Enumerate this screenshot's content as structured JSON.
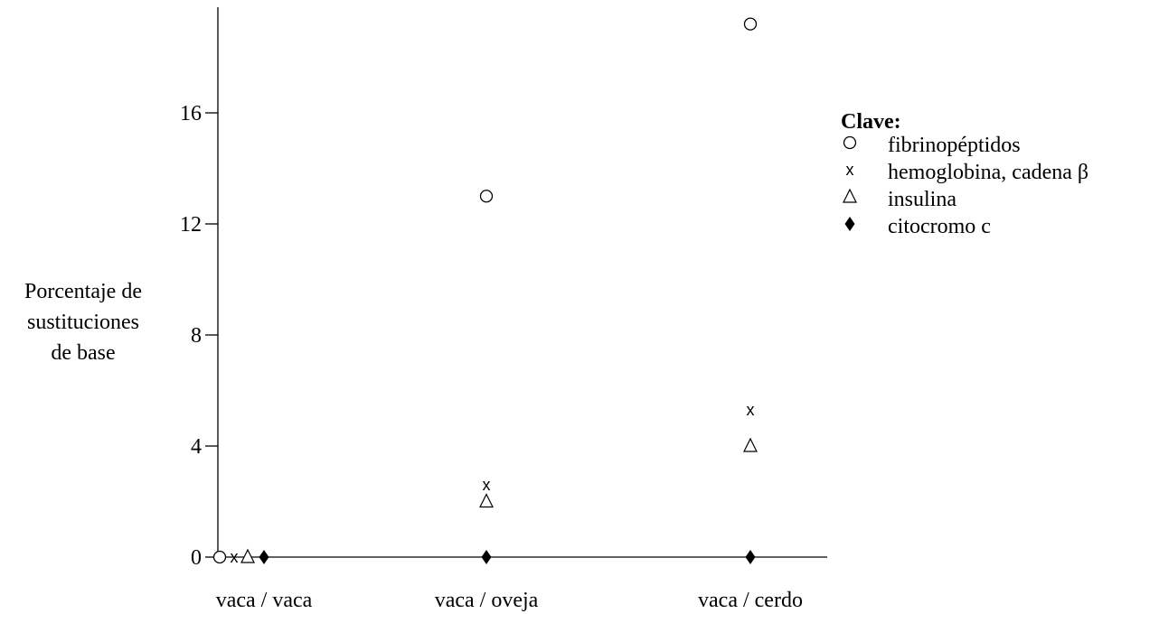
{
  "chart_data": {
    "type": "scatter",
    "title": "",
    "ylabel_lines": [
      "Porcentaje de",
      "sustituciones",
      "de base"
    ],
    "categories": [
      "vaca / vaca",
      "vaca / oveja",
      "vaca / cerdo"
    ],
    "yticks": [
      0,
      4,
      8,
      12,
      16
    ],
    "ylim": [
      0,
      19.5
    ],
    "grid": false,
    "legend": {
      "title": "Clave:",
      "position": "right",
      "items": [
        {
          "symbol": "circle",
          "label": "fibrinopéptidos"
        },
        {
          "symbol": "x",
          "label": "hemoglobina, cadena β"
        },
        {
          "symbol": "triangle",
          "label": "insulina"
        },
        {
          "symbol": "diamond",
          "label": "citocromo c"
        }
      ]
    },
    "series": [
      {
        "name": "fibrinopéptidos",
        "symbol": "circle",
        "values": [
          0,
          13,
          19.2
        ]
      },
      {
        "name": "hemoglobina, cadena β",
        "symbol": "x",
        "values": [
          0,
          2.6,
          5.3
        ]
      },
      {
        "name": "insulina",
        "symbol": "triangle",
        "values": [
          0,
          2,
          4
        ]
      },
      {
        "name": "citocromo c",
        "symbol": "diamond",
        "values": [
          0,
          0,
          0
        ]
      }
    ]
  }
}
